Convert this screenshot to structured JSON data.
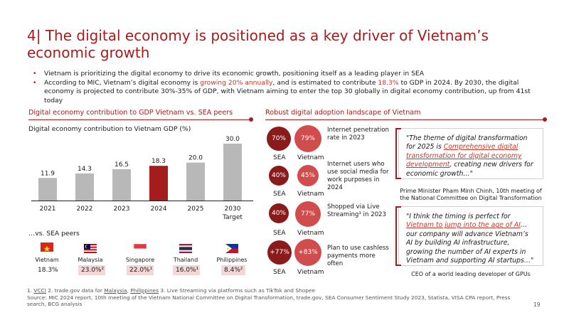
{
  "title": {
    "number": "4|",
    "text": "The digital economy is positioned as a key driver of Vietnam’s economic growth"
  },
  "bullets": {
    "b1": "Vietnam is prioritizing the digital economy to drive its economic growth, positioning itself as a leading player in SEA",
    "b2_pre": "According to MIC, Vietnam’s digital economy is ",
    "b2_hl1": "growing 20% annually",
    "b2_mid": ", and is estimated to contribute ",
    "b2_hl2": "18.3%",
    "b2_post": " to GDP in 2024. By 2030, the digital economy is projected to contribute 30%-35% of GDP, with Vietnam aiming to enter the top 30 globally in digital economy contribution, up from 41st today"
  },
  "left_section": {
    "label": "Digital economy contribution to GDP Vietnam vs. SEA peers",
    "chart_subtitle": "Digital economy contribution to Vietnam GDP (%)",
    "peers_title": "…vs. SEA peers",
    "peers": [
      {
        "country": "Vietnam",
        "value": "18.3%",
        "shaded": false
      },
      {
        "country": "Malaysia",
        "value": "23.0%²",
        "shaded": true
      },
      {
        "country": "Singapore",
        "value": "22.0%¹",
        "shaded": true
      },
      {
        "country": "Thailand",
        "value": "16.0%¹",
        "shaded": true
      },
      {
        "country": "Philippines",
        "value": "8.4%²",
        "shaded": true
      }
    ]
  },
  "chart_data": {
    "type": "bar",
    "title": "Digital economy contribution to Vietnam GDP (%)",
    "categories": [
      "2021",
      "2022",
      "2023",
      "2024",
      "2025",
      "2030"
    ],
    "category_sublabels": [
      "",
      "",
      "",
      "",
      "",
      "Target"
    ],
    "values": [
      11.9,
      14.3,
      16.5,
      18.3,
      20.0,
      30.0
    ],
    "value_labels": [
      "11.9",
      "14.3",
      "16.5",
      "18.3",
      "20.0",
      "30.0"
    ],
    "highlight_index": 3,
    "colors": {
      "default": "#b8b8b8",
      "highlight": "#a51c1c"
    },
    "ylim": [
      0,
      30
    ],
    "grid": false
  },
  "right_section": {
    "label": "Robust digital adoption landscape of Vietnam",
    "col_sea": "SEA",
    "col_vn": "Vietnam",
    "metrics": [
      {
        "sea": "70%",
        "vn": "79%",
        "text": "Internet penetration rate in 2023"
      },
      {
        "sea": "40%",
        "vn": "45%",
        "text": "Internet users who use social media for work purposes in 2024"
      },
      {
        "sea": "40%",
        "vn": "77%",
        "text": "Shopped via Live Streaming³ in 2023"
      },
      {
        "sea": "+77%",
        "vn": "+83%",
        "text": "Plan to use cashless payments more often"
      }
    ]
  },
  "quotes": [
    {
      "pre": "\"The theme of digital transformation for 2025 is ",
      "hl": "Comprehensive digital transformation for digital economy development",
      "post": ", creating new drivers for economic growth…\"",
      "attribution": "Prime Minister Pham Minh Chinh, 10th meeting of the National Committee on Digital Transformation"
    },
    {
      "pre": "\"I think the timing is perfect for ",
      "hl": "Vietnam to jump into the age of AI",
      "post": "… our company will advance Vietnam’s AI by building AI infrastructure, growing the number of AI experts in Vietnam and supporting AI startups…\"",
      "attribution": "CEO of a world leading developer of GPUs"
    }
  ],
  "footnote": {
    "f1": "1.",
    "f1_link": "VCCI",
    "f2": " 2. trade.gov data for ",
    "f2_link1": "Malaysia",
    "f2_sep": ", ",
    "f2_link2": "Philippines",
    "f3": " 3. Live Streaming via platforms such as TikTok and Shopee",
    "source": "Source: MIC 2024 report, 10th meeting of the Vietnam National Committee on Digital Transformation, trade.gov, SEA Consumer Sentiment Study 2023, Statista, VISA CPA report, Press search, BCG analysis"
  },
  "page_number": "19"
}
